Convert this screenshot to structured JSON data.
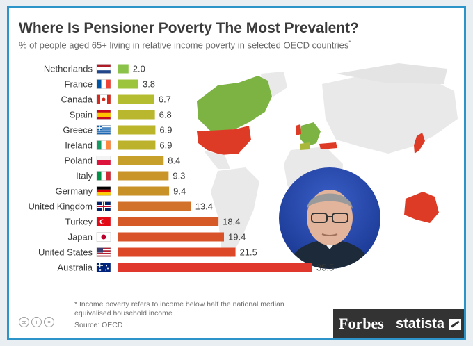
{
  "chart_data": {
    "type": "bar",
    "orientation": "horizontal",
    "title": "Where Is Pensioner Poverty The Most Prevalent?",
    "subtitle": "% of people aged 65+ living in relative income poverty in selected OECD countries",
    "subtitle_mark": "*",
    "categories": [
      "Netherlands",
      "France",
      "Canada",
      "Spain",
      "Greece",
      "Ireland",
      "Poland",
      "Italy",
      "Germany",
      "United Kingdom",
      "Turkey",
      "Japan",
      "United States",
      "Australia"
    ],
    "values": [
      2.0,
      3.8,
      6.7,
      6.8,
      6.9,
      6.9,
      8.4,
      9.3,
      9.4,
      13.4,
      18.4,
      19.4,
      21.5,
      35.5
    ],
    "value_labels": [
      "2.0",
      "3.8",
      "6.7",
      "6.8",
      "6.9",
      "6.9",
      "8.4",
      "9.3",
      "9.4",
      "13.4",
      "18.4",
      "19.4",
      "21.5",
      "35.5"
    ],
    "bar_colors": [
      "#8bc34a",
      "#9cc43c",
      "#b4bd2f",
      "#b9b72e",
      "#bbb52c",
      "#bcb22b",
      "#c6a02a",
      "#c99428",
      "#c99228",
      "#d1712a",
      "#d55a28",
      "#d8532a",
      "#dd4828",
      "#e0382c"
    ],
    "flags": [
      "flag-netherlands-icon",
      "flag-france-icon",
      "flag-canada-icon",
      "flag-spain-icon",
      "flag-greece-icon",
      "flag-ireland-icon",
      "flag-poland-icon",
      "flag-italy-icon",
      "flag-germany-icon",
      "flag-uk-icon",
      "flag-turkey-icon",
      "flag-japan-icon",
      "flag-usa-icon",
      "flag-australia-icon"
    ],
    "xlim": [
      0,
      36
    ],
    "grid": false,
    "legend": "none"
  },
  "footnote": "* Income poverty refers to income below half the national median equivalised household income",
  "source": "Source: OECD",
  "brands": {
    "forbes": "Forbes",
    "statista": "statista"
  },
  "license_icons": [
    "cc-icon",
    "attribution-icon",
    "no-derivatives-icon"
  ],
  "portrait": "portrait-photo",
  "colors": {
    "frame": "#2c94c8",
    "map_green": "#7cb342",
    "map_red": "#dd3b26",
    "map_grey": "#e6e6e6",
    "brand_bar": "#333333"
  }
}
